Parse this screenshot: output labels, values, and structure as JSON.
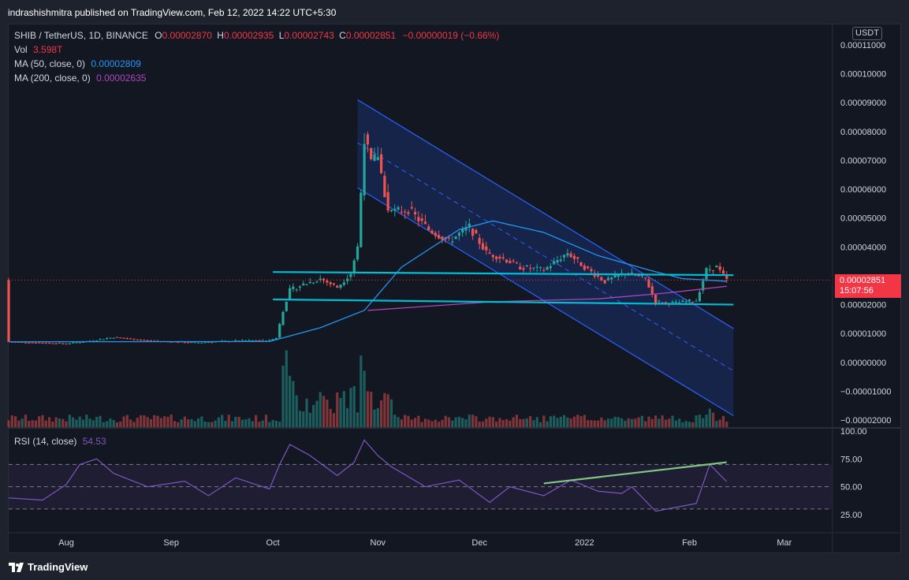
{
  "header": {
    "publish_text": "indrashishmitra published on TradingView.com, Feb 12, 2022 14:22 UTC+5:30"
  },
  "legend": {
    "symbol": "SHIB / TetherUS, 1D, BINANCE",
    "o_label": "O",
    "o_value": "0.00002870",
    "h_label": "H",
    "h_value": "0.00002935",
    "l_label": "L",
    "l_value": "0.00002743",
    "c_label": "C",
    "c_value": "0.00002851",
    "change": "−0.00000019 (−0.66%)",
    "vol_label": "Vol",
    "vol_value": "3.598T",
    "ma50_label": "MA (50, close, 0)",
    "ma50_value": "0.00002809",
    "ma200_label": "MA (200, close, 0)",
    "ma200_value": "0.00002635",
    "rsi_label": "RSI (14, close)",
    "rsi_value": "54.53"
  },
  "price_axis": {
    "currency_badge": "USDT",
    "ticks": [
      "0.00011000",
      "0.00010000",
      "0.00009000",
      "0.00008000",
      "0.00007000",
      "0.00006000",
      "0.00005000",
      "0.00004000",
      "0.00003000",
      "0.00002000",
      "0.00001000",
      "0.00000000",
      "−0.00001000",
      "−0.00002000"
    ],
    "last_price": "0.00002851",
    "countdown": "15:07:56"
  },
  "rsi_axis": {
    "ticks": [
      "100.00",
      "75.00",
      "50.00",
      "25.00"
    ]
  },
  "time_axis": {
    "ticks": [
      "Aug",
      "Sep",
      "Oct",
      "Nov",
      "Dec",
      "2022",
      "Feb",
      "Mar"
    ]
  },
  "footer": {
    "brand": "TradingView"
  },
  "colors": {
    "up": "#26a69a",
    "down": "#ef5350",
    "ma50": "#2196f3",
    "ma200": "#ab47bc",
    "rsi": "#7e57c2",
    "channel": "#2962ff",
    "support": "#00bcd4",
    "trend": "#81c784",
    "last_price": "#f23645"
  },
  "chart_data": {
    "type": "candlestick",
    "symbol": "SHIB / TetherUS",
    "interval": "1D",
    "exchange": "BINANCE",
    "x_range": [
      "2021-07-15",
      "2022-03-15"
    ],
    "y_range": [
      -2e-05,
      0.000115
    ],
    "ohlc_last": {
      "open": 2.87e-05,
      "high": 2.935e-05,
      "low": 2.743e-05,
      "close": 2.851e-05
    },
    "price_path": [
      [
        "2021-07-15",
        7.1e-06
      ],
      [
        "2021-08-01",
        6.5e-06
      ],
      [
        "2021-08-08",
        7.4e-06
      ],
      [
        "2021-08-15",
        8.7e-06
      ],
      [
        "2021-08-25",
        7.5e-06
      ],
      [
        "2021-09-08",
        6.8e-06
      ],
      [
        "2021-09-20",
        7.5e-06
      ],
      [
        "2021-09-30",
        7.6e-06
      ],
      [
        "2021-10-02",
        8.5e-06
      ],
      [
        "2021-10-04",
        1.8e-05
      ],
      [
        "2021-10-06",
        2.5e-05
      ],
      [
        "2021-10-10",
        2.7e-05
      ],
      [
        "2021-10-15",
        2.9e-05
      ],
      [
        "2021-10-20",
        2.6e-05
      ],
      [
        "2021-10-24",
        3.1e-05
      ],
      [
        "2021-10-26",
        4e-05
      ],
      [
        "2021-10-28",
        7.8e-05
      ],
      [
        "2021-10-30",
        6.9e-05
      ],
      [
        "2021-11-01",
        7.2e-05
      ],
      [
        "2021-11-04",
        5.2e-05
      ],
      [
        "2021-11-10",
        5.3e-05
      ],
      [
        "2021-11-16",
        4.6e-05
      ],
      [
        "2021-11-22",
        4.2e-05
      ],
      [
        "2021-11-28",
        4.7e-05
      ],
      [
        "2021-12-03",
        3.8e-05
      ],
      [
        "2021-12-08",
        3.6e-05
      ],
      [
        "2021-12-13",
        3.3e-05
      ],
      [
        "2021-12-20",
        3.2e-05
      ],
      [
        "2021-12-27",
        3.8e-05
      ],
      [
        "2022-01-01",
        3.3e-05
      ],
      [
        "2022-01-07",
        2.8e-05
      ],
      [
        "2022-01-13",
        3.1e-05
      ],
      [
        "2022-01-19",
        2.9e-05
      ],
      [
        "2022-01-22",
        2.1e-05
      ],
      [
        "2022-01-28",
        2.05e-05
      ],
      [
        "2022-02-03",
        2.15e-05
      ],
      [
        "2022-02-06",
        3.2e-05
      ],
      [
        "2022-02-09",
        3.3e-05
      ],
      [
        "2022-02-12",
        2.85e-05
      ]
    ],
    "ma50_path": [
      [
        "2021-07-15",
        7.1e-06
      ],
      [
        "2021-09-30",
        7.2e-06
      ],
      [
        "2021-10-15",
        1.2e-05
      ],
      [
        "2021-10-28",
        1.8e-05
      ],
      [
        "2021-11-08",
        3.3e-05
      ],
      [
        "2021-11-25",
        4.6e-05
      ],
      [
        "2021-12-05",
        4.9e-05
      ],
      [
        "2021-12-20",
        4.5e-05
      ],
      [
        "2022-01-05",
        3.7e-05
      ],
      [
        "2022-01-20",
        3.2e-05
      ],
      [
        "2022-01-30",
        2.9e-05
      ],
      [
        "2022-02-12",
        2.809e-05
      ]
    ],
    "ma200_path": [
      [
        "2021-10-29",
        1.8e-05
      ],
      [
        "2021-12-05",
        2.1e-05
      ],
      [
        "2022-01-05",
        2.2e-05
      ],
      [
        "2022-01-25",
        2.4e-05
      ],
      [
        "2022-02-12",
        2.635e-05
      ]
    ],
    "volume_series": [
      [
        "2021-10-04",
        0.6
      ],
      [
        "2021-10-05",
        0.75
      ],
      [
        "2021-10-06",
        0.5
      ],
      [
        "2021-10-07",
        0.45
      ],
      [
        "2021-10-25",
        0.4
      ],
      [
        "2021-10-27",
        0.7
      ],
      [
        "2021-10-28",
        0.55
      ],
      [
        "2021-10-29",
        0.35
      ],
      [
        "2022-02-07",
        0.18
      ],
      [
        "2022-02-08",
        0.14
      ]
    ],
    "rsi_path": [
      [
        "2021-07-15",
        40
      ],
      [
        "2021-07-25",
        38
      ],
      [
        "2021-08-01",
        52
      ],
      [
        "2021-08-05",
        70
      ],
      [
        "2021-08-10",
        75
      ],
      [
        "2021-08-15",
        62
      ],
      [
        "2021-08-25",
        50
      ],
      [
        "2021-09-05",
        55
      ],
      [
        "2021-09-12",
        42
      ],
      [
        "2021-09-20",
        58
      ],
      [
        "2021-09-30",
        48
      ],
      [
        "2021-10-03",
        70
      ],
      [
        "2021-10-06",
        88
      ],
      [
        "2021-10-12",
        78
      ],
      [
        "2021-10-20",
        60
      ],
      [
        "2021-10-25",
        72
      ],
      [
        "2021-10-28",
        92
      ],
      [
        "2021-11-01",
        78
      ],
      [
        "2021-11-05",
        68
      ],
      [
        "2021-11-15",
        50
      ],
      [
        "2021-11-25",
        56
      ],
      [
        "2021-12-04",
        36
      ],
      [
        "2021-12-10",
        50
      ],
      [
        "2021-12-20",
        42
      ],
      [
        "2021-12-28",
        56
      ],
      [
        "2022-01-05",
        46
      ],
      [
        "2022-01-12",
        44
      ],
      [
        "2022-01-15",
        50
      ],
      [
        "2022-01-22",
        28
      ],
      [
        "2022-02-03",
        35
      ],
      [
        "2022-02-07",
        70
      ],
      [
        "2022-02-12",
        54.53
      ]
    ],
    "rsi_bands": [
      30,
      50,
      70
    ],
    "drawings": {
      "descending_channel": {
        "upper": [
          [
            "2021-10-26",
            9.1e-05
          ],
          [
            "2022-02-14",
            1.17e-05
          ]
        ],
        "lower": [
          [
            "2021-10-26",
            6.05e-05
          ],
          [
            "2022-02-14",
            -1.85e-05
          ]
        ],
        "mid": [
          [
            "2021-10-26",
            7.61e-05
          ],
          [
            "2022-02-14",
            -3e-06
          ]
        ]
      },
      "resistance": [
        [
          "2021-10-01",
          3.13e-05
        ],
        [
          "2022-02-14",
          3.02e-05
        ]
      ],
      "support": [
        [
          "2021-10-01",
          2.18e-05
        ],
        [
          "2022-02-14",
          2e-05
        ]
      ],
      "rsi_trendline": [
        [
          "2021-12-20",
          53
        ],
        [
          "2022-02-12",
          72
        ]
      ]
    },
    "grid": false
  }
}
